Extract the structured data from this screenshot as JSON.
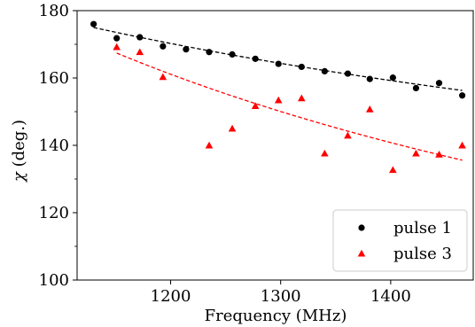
{
  "chart_data": {
    "type": "scatter",
    "xlabel": "Frequency (MHz)",
    "ylabel_symbol": "χ",
    "ylabel_unit": " (deg.)",
    "xlim": [
      1115,
      1475
    ],
    "ylim": [
      100,
      180
    ],
    "x_ticks": [
      1200,
      1300,
      1400
    ],
    "y_ticks": [
      100,
      120,
      140,
      160,
      180
    ],
    "grid": false,
    "legend_position": "bottom-right",
    "series": [
      {
        "name": "pulse 1",
        "marker": "circle",
        "color": "#000000",
        "points": [
          [
            1130,
            176.0
          ],
          [
            1151,
            171.8
          ],
          [
            1172,
            172.1
          ],
          [
            1193,
            169.4
          ],
          [
            1214,
            168.5
          ],
          [
            1235,
            167.7
          ],
          [
            1256,
            167.0
          ],
          [
            1277,
            165.7
          ],
          [
            1298,
            164.2
          ],
          [
            1319,
            163.3
          ],
          [
            1340,
            162.0
          ],
          [
            1361,
            161.3
          ],
          [
            1381,
            159.7
          ],
          [
            1402,
            160.1
          ],
          [
            1423,
            157.0
          ],
          [
            1444,
            158.5
          ],
          [
            1465,
            154.8
          ]
        ],
        "fit": {
          "x_start": 1130,
          "y_start": 175.0,
          "x_end": 1465,
          "y_end": 156.3
        }
      },
      {
        "name": "pulse 3",
        "marker": "triangle",
        "color": "#ff0000",
        "points": [
          [
            1151,
            169.2
          ],
          [
            1172,
            167.7
          ],
          [
            1193,
            160.3
          ],
          [
            1235,
            140.0
          ],
          [
            1256,
            145.0
          ],
          [
            1277,
            151.7
          ],
          [
            1298,
            153.4
          ],
          [
            1319,
            154.0
          ],
          [
            1340,
            137.6
          ],
          [
            1361,
            142.9
          ],
          [
            1381,
            150.7
          ],
          [
            1402,
            132.7
          ],
          [
            1423,
            137.6
          ],
          [
            1444,
            137.3
          ],
          [
            1465,
            140.0
          ]
        ],
        "fit": {
          "x_start": 1151,
          "y_start": 167.4,
          "x_end": 1465,
          "y_end": 135.6
        }
      }
    ]
  }
}
